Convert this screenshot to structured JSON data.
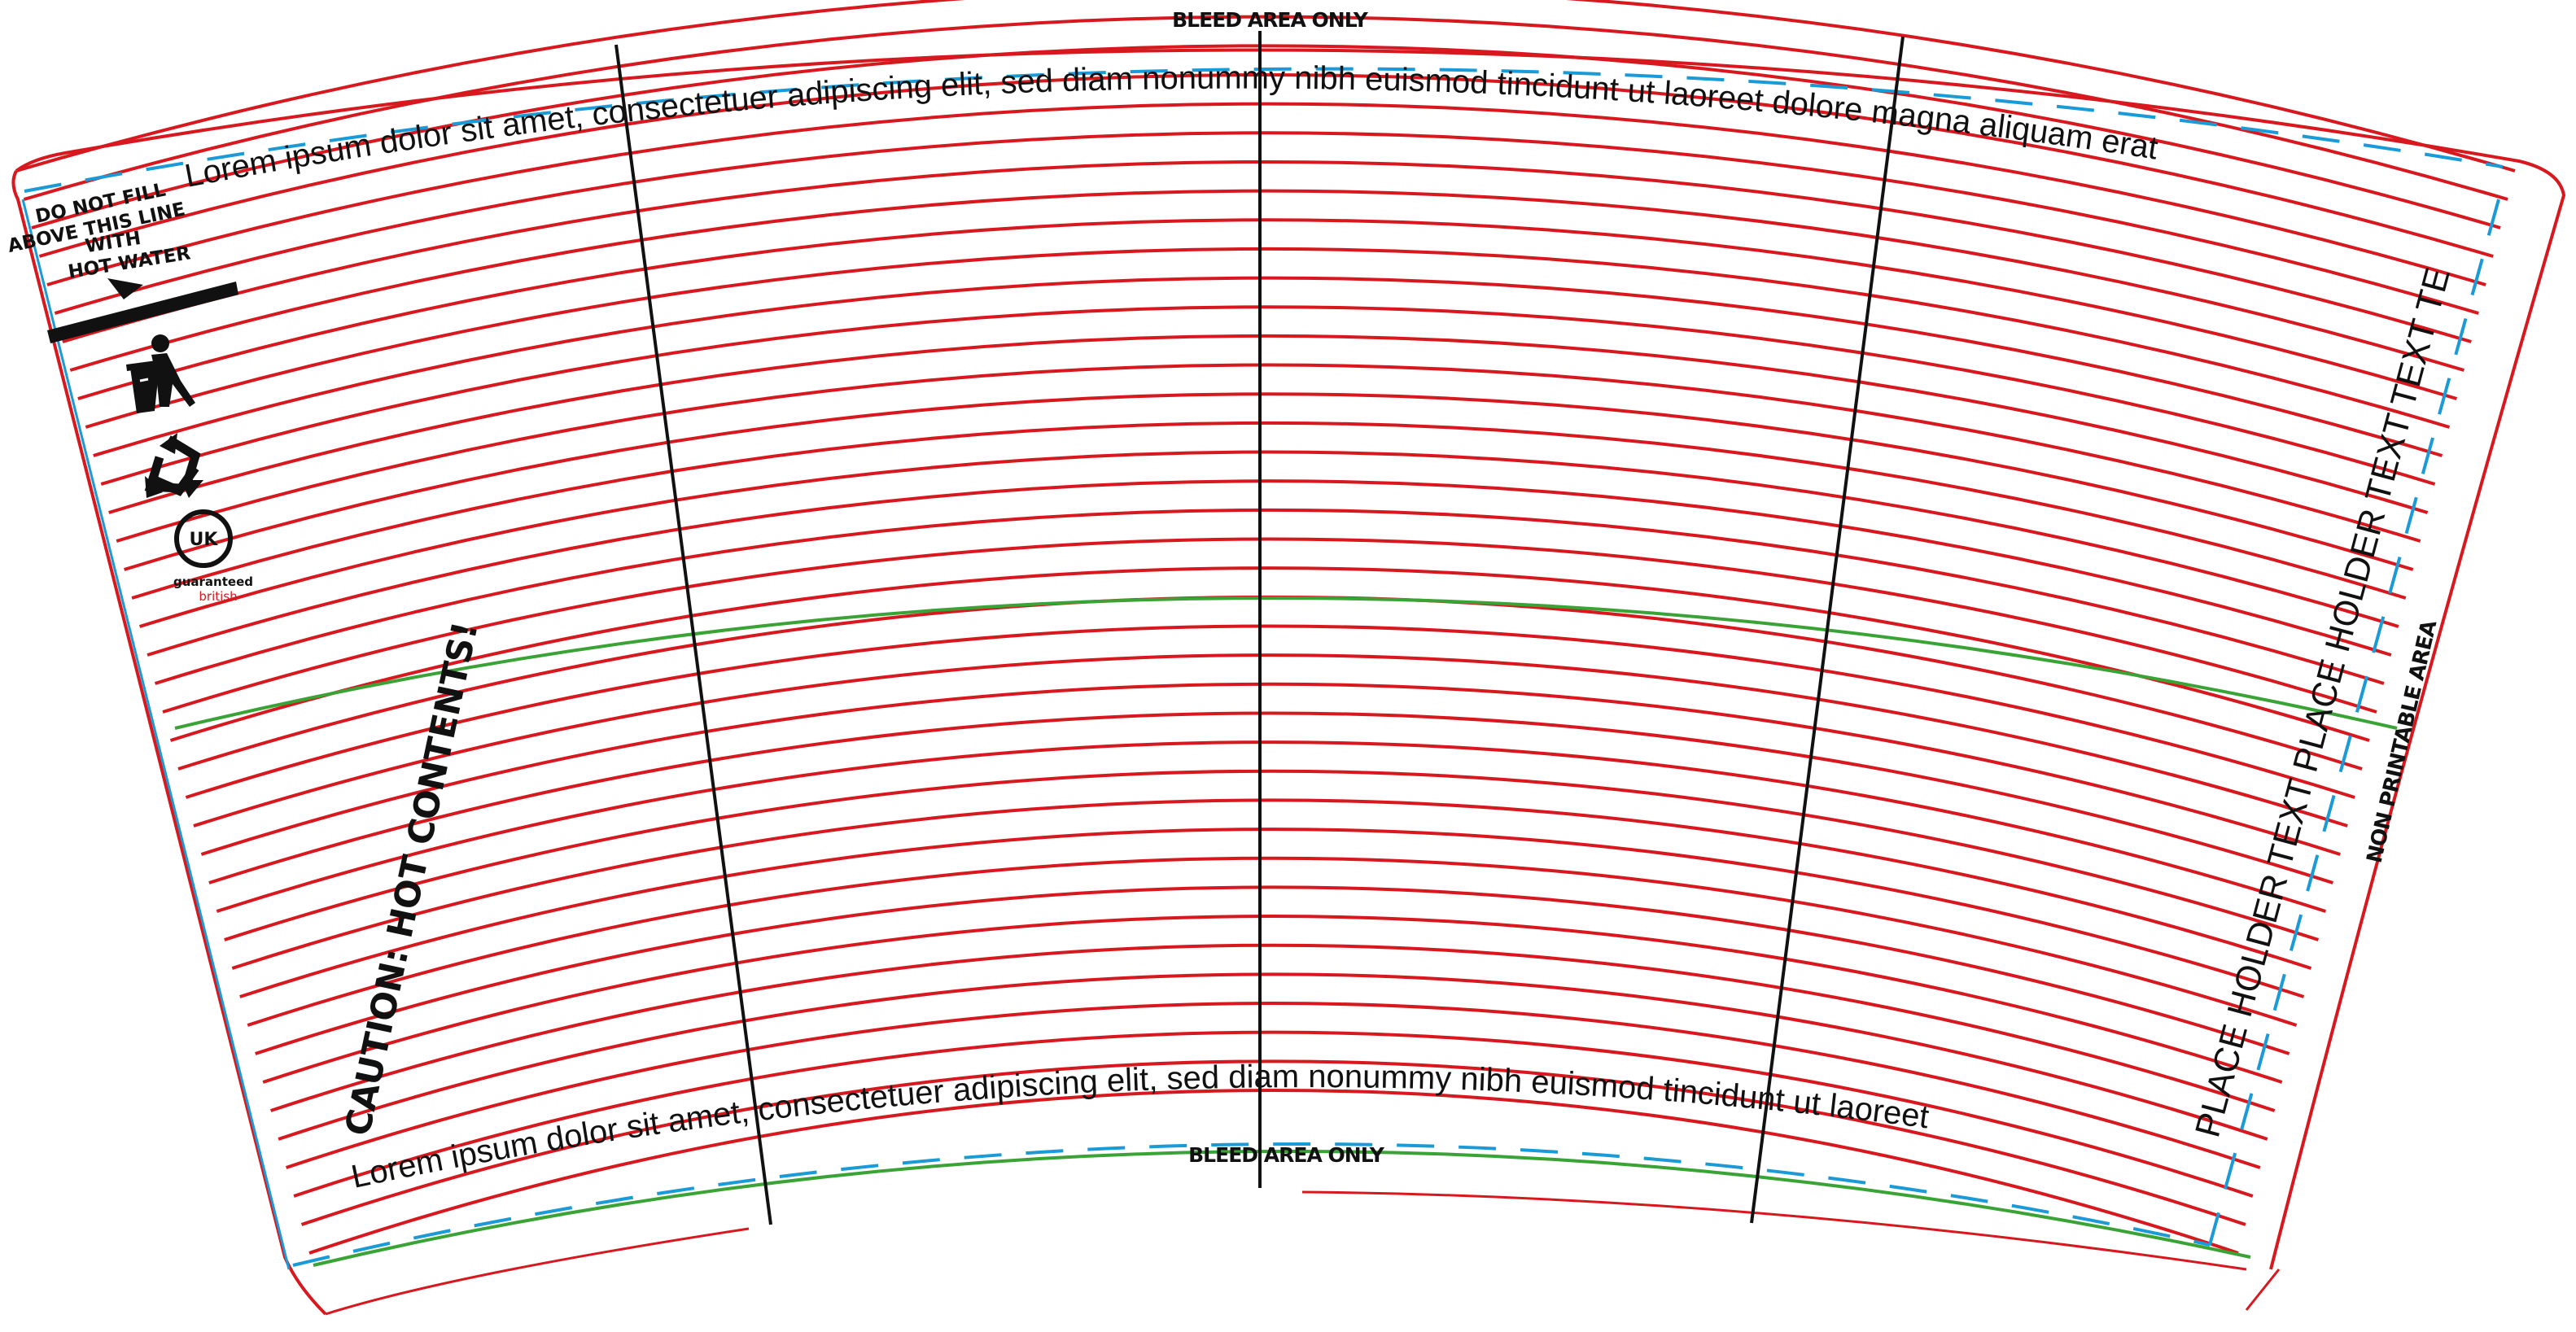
{
  "template": {
    "bleed_label_top": "BLEED AREA ONLY",
    "bleed_label_bottom": "BLEED AREA ONLY",
    "top_text": "Lorem ipsum dolor sit amet, consectetuer adipiscing elit, sed diam nonummy nibh euismod tincidunt ut laoreet dolore magna aliquam erat",
    "bottom_text": "Lorem ipsum dolor sit amet, consectetuer adipiscing elit, sed diam nonummy nibh euismod tincidunt ut laoreet",
    "right_text": "PLACE HOLDER TEXT PLACE HOLDER TEXT TEXT TEXT",
    "non_printable_label": "NON PRINTABLE AREA",
    "caution_text": "CAUTION: HOT CONTENTS!"
  },
  "left_panel": {
    "fill_warning_lines": [
      "DO NOT FILL",
      "ABOVE THIS LINE",
      "WITH",
      "HOT WATER"
    ],
    "uk_badge": "UK",
    "guaranteed": "guaranteed",
    "british": "british"
  },
  "icons": [
    "fill-line-arrow-icon",
    "tidyman-litter-icon",
    "recycle-icon",
    "uk-badge-icon"
  ],
  "colors": {
    "guide_red": "#d7191f",
    "safe_green": "#3aa335",
    "bleed_blue": "#1a9ad6",
    "fold_black": "#111111"
  }
}
